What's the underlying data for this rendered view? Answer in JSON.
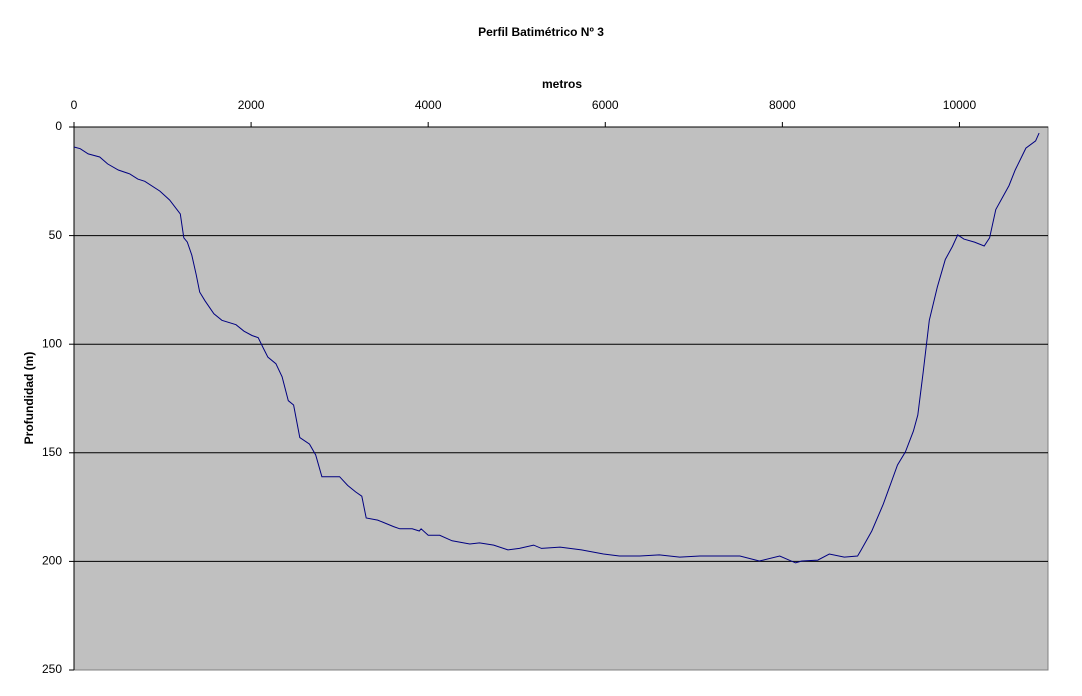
{
  "chart_data": {
    "type": "line",
    "title": "Perfil Batimétrico Nº 3",
    "x_label": "metros",
    "y_label": "Profundidad (m)",
    "x": [
      0,
      70,
      160,
      290,
      380,
      500,
      630,
      720,
      800,
      970,
      1080,
      1200,
      1240,
      1280,
      1330,
      1380,
      1420,
      1480,
      1580,
      1670,
      1830,
      1920,
      2010,
      2080,
      2140,
      2190,
      2280,
      2350,
      2420,
      2480,
      2550,
      2660,
      2730,
      2800,
      3000,
      3090,
      3180,
      3250,
      3300,
      3430,
      3610,
      3680,
      3820,
      3900,
      3920,
      4000,
      4130,
      4270,
      4470,
      4580,
      4740,
      4900,
      5030,
      5190,
      5280,
      5490,
      5730,
      5980,
      6160,
      6390,
      6610,
      6840,
      7070,
      7290,
      7520,
      7740,
      7970,
      8150,
      8220,
      8400,
      8530,
      8700,
      8850,
      8890,
      9010,
      9140,
      9300,
      9390,
      9480,
      9530,
      9590,
      9660,
      9750,
      9840,
      9920,
      9980,
      10050,
      10170,
      10280,
      10340,
      10410,
      10560,
      10630,
      10750,
      10860,
      10900
    ],
    "series": [
      {
        "name": "Profundidad",
        "color": "#000080",
        "values": [
          9.2,
          10,
          12.4,
          13.8,
          17,
          19.8,
          21.6,
          24,
          25,
          29.5,
          33.6,
          40,
          51,
          53,
          59,
          68,
          76,
          80,
          86,
          89,
          91,
          94,
          96,
          97,
          102,
          106,
          109,
          115,
          126,
          128,
          143,
          146,
          151,
          161,
          161,
          165,
          168,
          170,
          180,
          181,
          184,
          185,
          185,
          186,
          185,
          188,
          188,
          190.5,
          192,
          191.5,
          192.5,
          194.7,
          194,
          192.5,
          194,
          193.4,
          194.7,
          196.6,
          197.5,
          197.5,
          197,
          198,
          197.5,
          197.5,
          197.5,
          199.8,
          197.5,
          200.7,
          199.8,
          199.4,
          196.6,
          198,
          197.5,
          194.7,
          186,
          173.6,
          155.6,
          149.6,
          140,
          132.6,
          112.8,
          89,
          73.7,
          61,
          55,
          49.7,
          51.6,
          53,
          54.8,
          51,
          38,
          27,
          19.8,
          9.7,
          6.4,
          2.8
        ]
      }
    ],
    "xlim": [
      0,
      11000
    ],
    "xticks": [
      0,
      2000,
      4000,
      6000,
      8000,
      10000
    ],
    "ylim": [
      0,
      250
    ],
    "yticks": [
      0,
      50,
      100,
      150,
      200,
      250
    ],
    "y_reversed": true,
    "x_axis_position": "top",
    "grid": true
  }
}
